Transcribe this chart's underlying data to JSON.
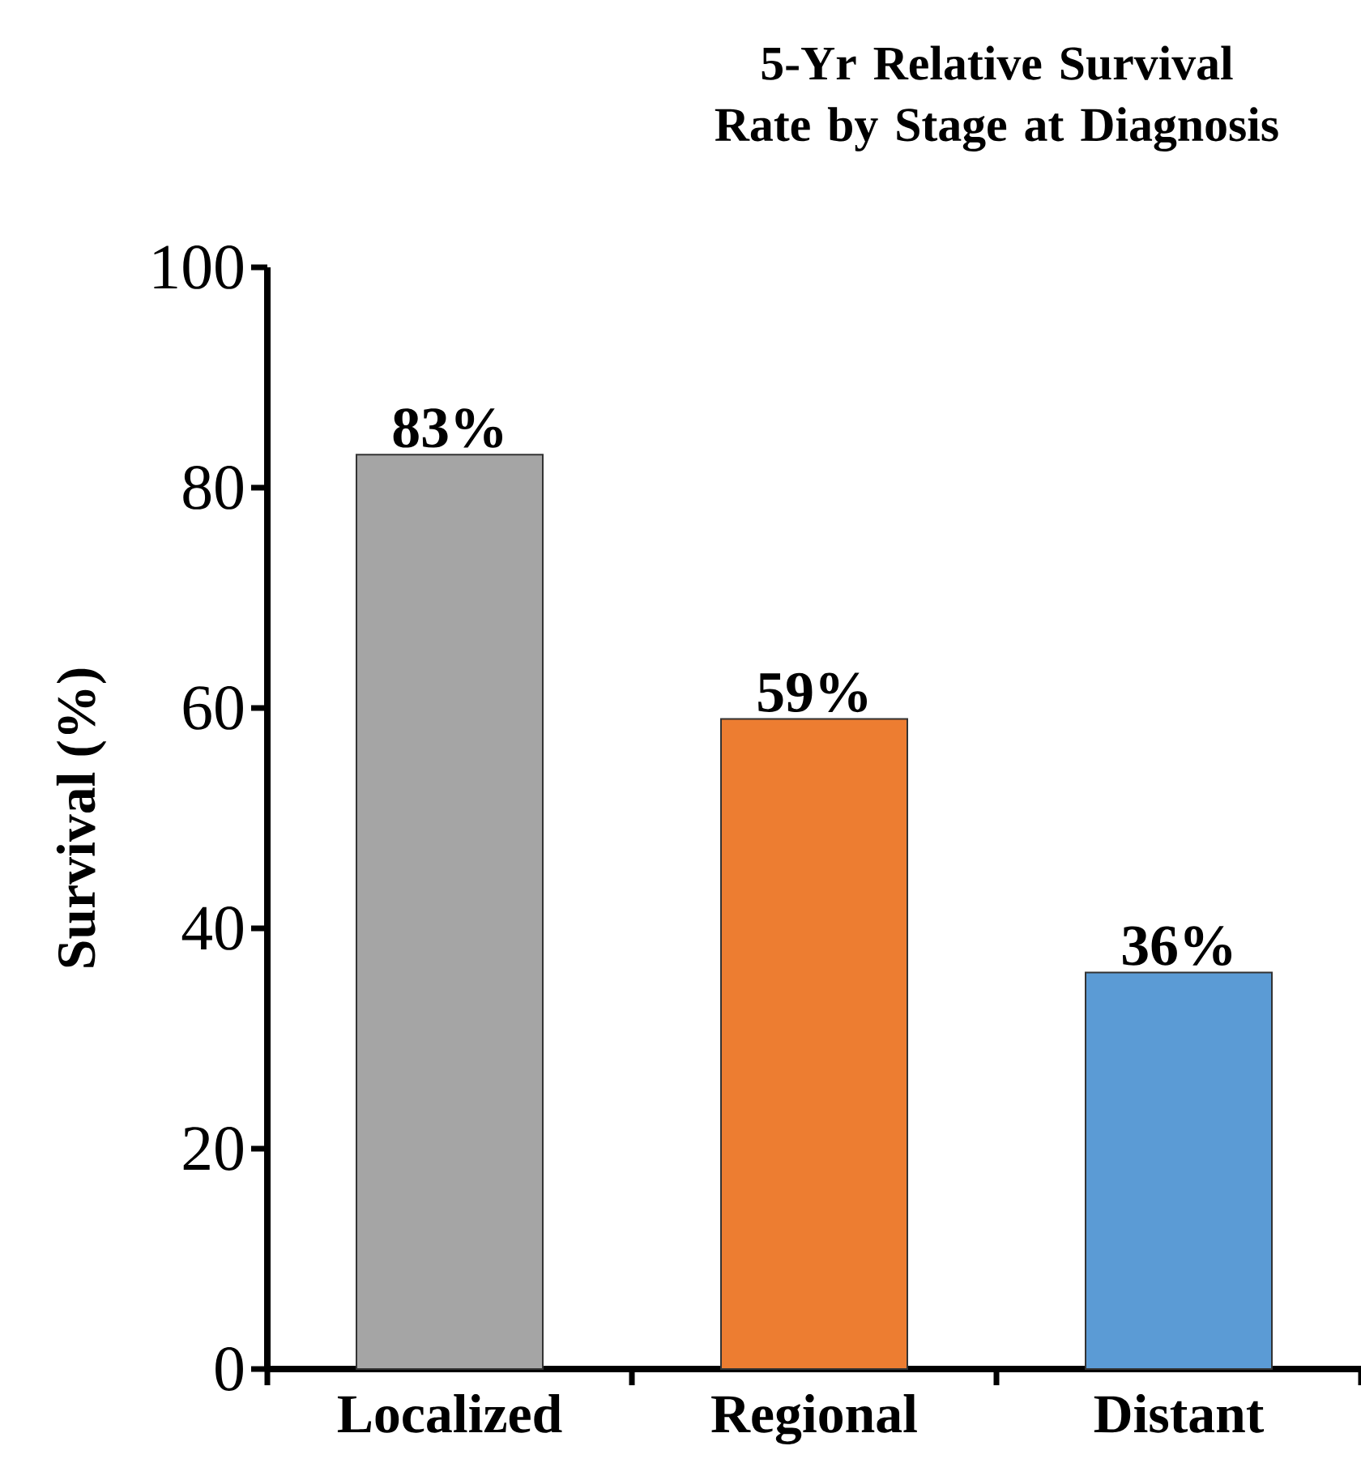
{
  "chart_data": {
    "type": "bar",
    "title": "5-Yr Relative Survival Rate by Stage at Diagnosis",
    "ylabel": "Survival (%)",
    "categories": [
      "Localized",
      "Regional",
      "Distant"
    ],
    "values": [
      83,
      59,
      36
    ],
    "colors": [
      "#a5a5a5",
      "#ed7d31",
      "#5b9bd5"
    ],
    "value_labels": [
      "83%",
      "59%",
      "36%"
    ],
    "ylim": [
      0,
      100
    ],
    "yticks": [
      0,
      20,
      40,
      60,
      80,
      100
    ]
  }
}
